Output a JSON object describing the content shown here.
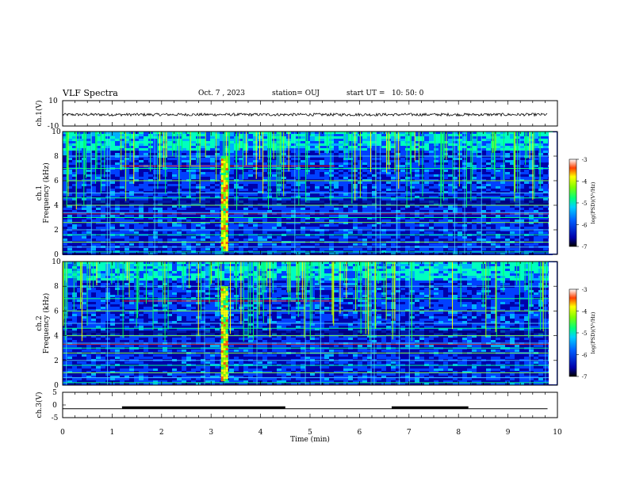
{
  "header": {
    "title": "VLF Spectra",
    "date": "Oct. 7 , 2023",
    "station": "station= OUJ",
    "start_ut": "start UT =   10: 50: 0"
  },
  "chart_data": [
    {
      "type": "line",
      "panel": "ch1-waveform",
      "ylabel": "ch.1(V)",
      "ylim": [
        -10,
        10
      ],
      "yticks": [
        "10",
        "-10"
      ],
      "series": [
        {
          "values_approx": "constant near -1 V with small noise"
        }
      ]
    },
    {
      "type": "heatmap",
      "panel": "ch1-spectrogram",
      "ylabel": "ch.1 Frequency (kHz)",
      "ylim": [
        0,
        10
      ],
      "yticks": [
        "0",
        "2",
        "4",
        "6",
        "8",
        "10"
      ],
      "colorbar": {
        "label": "log(PSD)(V²/Hz)",
        "range": [
          -7,
          -3
        ],
        "ticks": [
          "-3",
          "-4",
          "-5",
          "-6",
          "-7"
        ]
      },
      "features": {
        "bursts_min": [
          3.2,
          3.3
        ],
        "lines_khz": [
          0.2,
          0.6,
          1.0,
          1.6,
          2.0,
          2.6,
          3.0,
          3.4,
          4.0,
          4.6,
          5.0,
          6.0,
          7.0,
          8.0
        ],
        "red_band_khz": 7.2
      }
    },
    {
      "type": "heatmap",
      "panel": "ch2-spectrogram",
      "ylabel": "ch.2 Frequency (kHz)",
      "ylim": [
        0,
        10
      ],
      "yticks": [
        "0",
        "2",
        "4",
        "6",
        "8",
        "10"
      ],
      "colorbar": {
        "label": "log(PSD)(V²/Hz)",
        "range": [
          -7,
          -3
        ],
        "ticks": [
          "-3",
          "-4",
          "-5",
          "-6",
          "-7"
        ]
      },
      "features": {
        "bursts_min": [
          3.2,
          3.3
        ],
        "lines_khz": [
          0.2,
          0.6,
          1.0,
          1.6,
          2.0,
          2.6,
          3.0,
          3.4,
          4.0,
          4.6,
          5.0,
          6.0,
          7.0,
          8.0
        ],
        "red_band_khz": 6.8
      }
    },
    {
      "type": "line",
      "panel": "ch3-waveform",
      "ylabel": "ch.3(V)",
      "ylim": [
        -5,
        5
      ],
      "yticks": [
        "5",
        "0",
        "-5"
      ],
      "segments": [
        {
          "x_min": 0,
          "x_max": 1.2,
          "value": -1.5
        },
        {
          "x_min": 1.2,
          "x_max": 4.5,
          "value": -1.0
        },
        {
          "x_min": 4.5,
          "x_max": 6.65,
          "value": -1.5
        },
        {
          "x_min": 6.65,
          "x_max": 8.2,
          "value": -1.0
        },
        {
          "x_min": 8.2,
          "x_max": 9.8,
          "value": -1.5
        }
      ]
    }
  ],
  "x_axis": {
    "label": "Time  (min)",
    "xlim": [
      0,
      10
    ],
    "ticks": [
      "0",
      "1",
      "2",
      "3",
      "4",
      "5",
      "6",
      "7",
      "8",
      "9",
      "10"
    ]
  },
  "colors": {
    "ink": "#000000",
    "colormap": [
      "#000000",
      "#0000aa",
      "#0040ff",
      "#00b0ff",
      "#00ffc0",
      "#40ff40",
      "#ffff00",
      "#ff8000",
      "#ff0000",
      "#ffffff"
    ]
  }
}
